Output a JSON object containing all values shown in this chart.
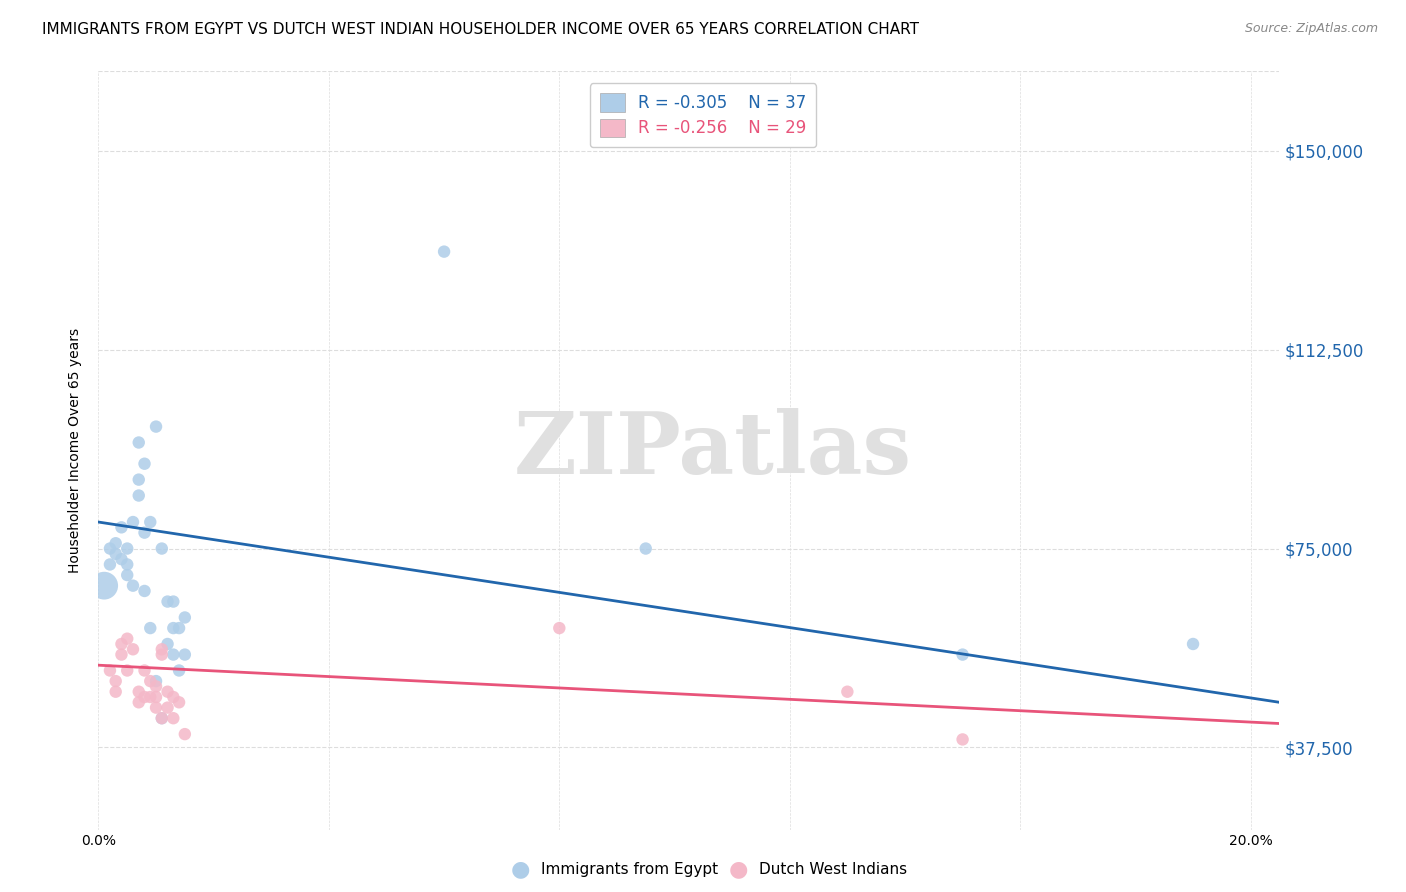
{
  "title": "IMMIGRANTS FROM EGYPT VS DUTCH WEST INDIAN HOUSEHOLDER INCOME OVER 65 YEARS CORRELATION CHART",
  "source": "Source: ZipAtlas.com",
  "ylabel": "Householder Income Over 65 years",
  "xlim": [
    0.0,
    0.205
  ],
  "ylim": [
    22000,
    165000
  ],
  "yticks": [
    37500,
    75000,
    112500,
    150000
  ],
  "ytick_labels": [
    "$37,500",
    "$75,000",
    "$112,500",
    "$150,000"
  ],
  "legend_blue_label": "Immigrants from Egypt",
  "legend_pink_label": "Dutch West Indians",
  "watermark": "ZIPatlas",
  "blue_color": "#aecde8",
  "pink_color": "#f4b8c8",
  "blue_line_color": "#2166ac",
  "pink_line_color": "#e8547a",
  "blue_scatter_x": [
    0.001,
    0.002,
    0.002,
    0.003,
    0.003,
    0.004,
    0.004,
    0.005,
    0.005,
    0.005,
    0.006,
    0.006,
    0.007,
    0.007,
    0.007,
    0.008,
    0.008,
    0.008,
    0.009,
    0.009,
    0.01,
    0.01,
    0.011,
    0.011,
    0.012,
    0.012,
    0.013,
    0.013,
    0.013,
    0.014,
    0.014,
    0.015,
    0.015,
    0.06,
    0.095,
    0.15,
    0.19
  ],
  "blue_scatter_y": [
    68000,
    72000,
    75000,
    74000,
    76000,
    73000,
    79000,
    70000,
    72000,
    75000,
    80000,
    68000,
    88000,
    95000,
    85000,
    91000,
    78000,
    67000,
    80000,
    60000,
    98000,
    50000,
    75000,
    43000,
    65000,
    57000,
    65000,
    60000,
    55000,
    52000,
    60000,
    62000,
    55000,
    131000,
    75000,
    55000,
    57000
  ],
  "blue_scatter_sizes": [
    400,
    80,
    80,
    80,
    80,
    80,
    80,
    80,
    80,
    80,
    80,
    80,
    80,
    80,
    80,
    80,
    80,
    80,
    80,
    80,
    80,
    80,
    80,
    80,
    80,
    80,
    80,
    80,
    80,
    80,
    80,
    80,
    80,
    80,
    80,
    80,
    80
  ],
  "pink_scatter_x": [
    0.002,
    0.003,
    0.003,
    0.004,
    0.004,
    0.005,
    0.005,
    0.006,
    0.007,
    0.007,
    0.008,
    0.008,
    0.009,
    0.009,
    0.01,
    0.01,
    0.01,
    0.011,
    0.011,
    0.011,
    0.012,
    0.012,
    0.013,
    0.013,
    0.014,
    0.015,
    0.08,
    0.13,
    0.15
  ],
  "pink_scatter_y": [
    52000,
    50000,
    48000,
    57000,
    55000,
    58000,
    52000,
    56000,
    46000,
    48000,
    52000,
    47000,
    50000,
    47000,
    49000,
    47000,
    45000,
    55000,
    56000,
    43000,
    48000,
    45000,
    47000,
    43000,
    46000,
    40000,
    60000,
    48000,
    39000
  ],
  "blue_line_x": [
    0.0,
    0.205
  ],
  "blue_line_y": [
    80000,
    46000
  ],
  "pink_line_x": [
    0.0,
    0.205
  ],
  "pink_line_y": [
    53000,
    42000
  ],
  "xtick_positions": [
    0.0,
    0.04,
    0.08,
    0.12,
    0.16,
    0.2
  ],
  "background_color": "#ffffff",
  "grid_color": "#dddddd"
}
